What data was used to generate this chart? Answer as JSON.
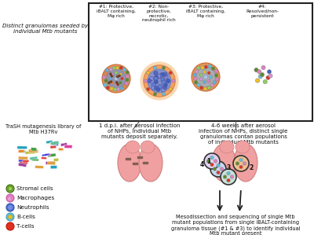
{
  "bg_color": "#ffffff",
  "granuloma_labels": [
    "#1: Protective,\niBALT containing,\nMφ rich",
    "#2: Non-\nprotective,\nnecrotic,\nneutrophil rich",
    "#3: Protective,\niBALT containing,\nMφ rich",
    "#4:\nResolved/non-\npersistent"
  ],
  "left_top_text": "Distinct granulomas seeded by\nindividual Mtb mutants",
  "left_mid_text": "TraSH mutagenesis library of\nMtb H37Rv",
  "mid_text": "1 d.p.i. after aerosol infection\nof NHPs, individual Mtb\nmutants deposit separately.",
  "right_mid_text": "4-6 weeks after aerosol\ninfection of NHPs, distinct single\ngranulomas contan populations\nof individual Mtb mutants",
  "bottom_text": "Mesodissection and sequencing of single Mtb\nmutant populations from single iBALT-containing\ngranuloma tissue (#1 & #3) to identify individual\nMtb mutant present",
  "legend_items": [
    {
      "label": "Stromal cells"
    },
    {
      "label": "Macrophages"
    },
    {
      "label": "Neutrophils"
    },
    {
      "label": "B-cells"
    },
    {
      "label": "T-cells"
    }
  ],
  "colors": {
    "lung_pink": "#f0a0a0",
    "stromal": "#5a8a2a",
    "macrophage": "#e080c0",
    "neutrophil": "#4060c0",
    "bcell": "#60c0e0",
    "tcell": "#e03020",
    "yellow": "#f0c020",
    "green2": "#90d060",
    "orange": "#f07020",
    "orange_glow": "#f09030",
    "blue_inner": "#6090d0",
    "blue_inner2": "#a0c8e8"
  }
}
